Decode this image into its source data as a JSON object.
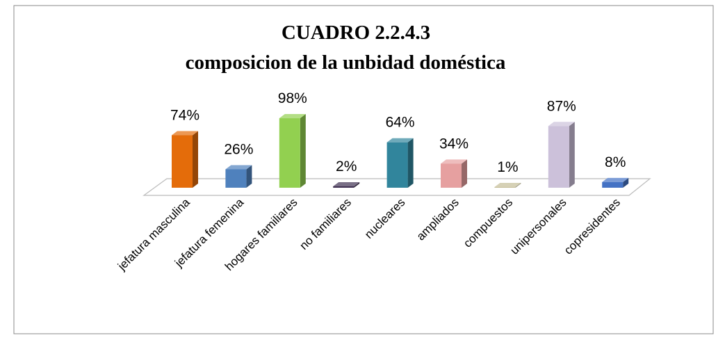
{
  "chart_data": {
    "type": "bar3d",
    "title": "CUADRO 2.2.4.3",
    "subtitle": "composicion de la unbidad doméstica",
    "categories": [
      "jefatura masculina",
      "jefatura femenina",
      "hogares familiares",
      "no familiares",
      "nucleares",
      "ampliados",
      "compuestos",
      "unipersonales",
      "copresidentes"
    ],
    "values": [
      74,
      26,
      98,
      2,
      64,
      34,
      1,
      87,
      8
    ],
    "value_labels": [
      "74%",
      "26%",
      "98%",
      "2%",
      "64%",
      "34%",
      "1%",
      "87%",
      "8%"
    ],
    "colors": [
      "#e46c0a",
      "#4f81bd",
      "#92d050",
      "#403152",
      "#31859c",
      "#e6a0a0",
      "#c4bd97",
      "#ccc1da",
      "#4472c4"
    ]
  }
}
